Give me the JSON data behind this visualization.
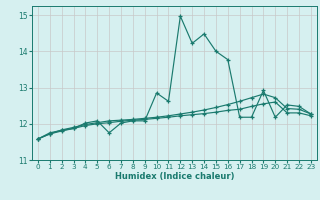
{
  "xlabel": "Humidex (Indice chaleur)",
  "bg_color": "#d6f0f0",
  "grid_color": "#c8c8c8",
  "line_color": "#1a7a6e",
  "xlim": [
    -0.5,
    23.5
  ],
  "ylim": [
    11,
    15.25
  ],
  "yticks": [
    11,
    12,
    13,
    14,
    15
  ],
  "xticks": [
    0,
    1,
    2,
    3,
    4,
    5,
    6,
    7,
    8,
    9,
    10,
    11,
    12,
    13,
    14,
    15,
    16,
    17,
    18,
    19,
    20,
    21,
    22,
    23
  ],
  "line1_x": [
    0,
    1,
    2,
    3,
    4,
    5,
    6,
    7,
    8,
    9,
    10,
    11,
    12,
    13,
    14,
    15,
    16,
    17,
    18,
    19,
    20,
    21,
    22,
    23
  ],
  "line1_y": [
    11.58,
    11.75,
    11.82,
    11.87,
    12.02,
    12.08,
    11.75,
    12.02,
    12.08,
    12.08,
    12.85,
    12.62,
    14.97,
    14.22,
    14.48,
    14.0,
    13.77,
    12.18,
    12.18,
    12.92,
    12.18,
    12.52,
    12.48,
    12.27
  ],
  "line2_x": [
    0,
    1,
    2,
    3,
    4,
    5,
    6,
    7,
    8,
    9,
    10,
    11,
    12,
    13,
    14,
    15,
    16,
    17,
    18,
    19,
    20,
    21,
    22,
    23
  ],
  "line2_y": [
    11.58,
    11.72,
    11.83,
    11.9,
    11.98,
    12.03,
    12.08,
    12.1,
    12.12,
    12.15,
    12.18,
    12.22,
    12.27,
    12.32,
    12.38,
    12.45,
    12.53,
    12.62,
    12.72,
    12.82,
    12.72,
    12.42,
    12.4,
    12.27
  ],
  "line3_x": [
    0,
    1,
    2,
    3,
    4,
    5,
    6,
    7,
    8,
    9,
    10,
    11,
    12,
    13,
    14,
    15,
    16,
    17,
    18,
    19,
    20,
    21,
    22,
    23
  ],
  "line3_y": [
    11.58,
    11.72,
    11.8,
    11.87,
    11.95,
    12.0,
    12.03,
    12.07,
    12.1,
    12.12,
    12.15,
    12.18,
    12.22,
    12.25,
    12.28,
    12.32,
    12.37,
    12.4,
    12.48,
    12.55,
    12.6,
    12.3,
    12.3,
    12.22
  ]
}
